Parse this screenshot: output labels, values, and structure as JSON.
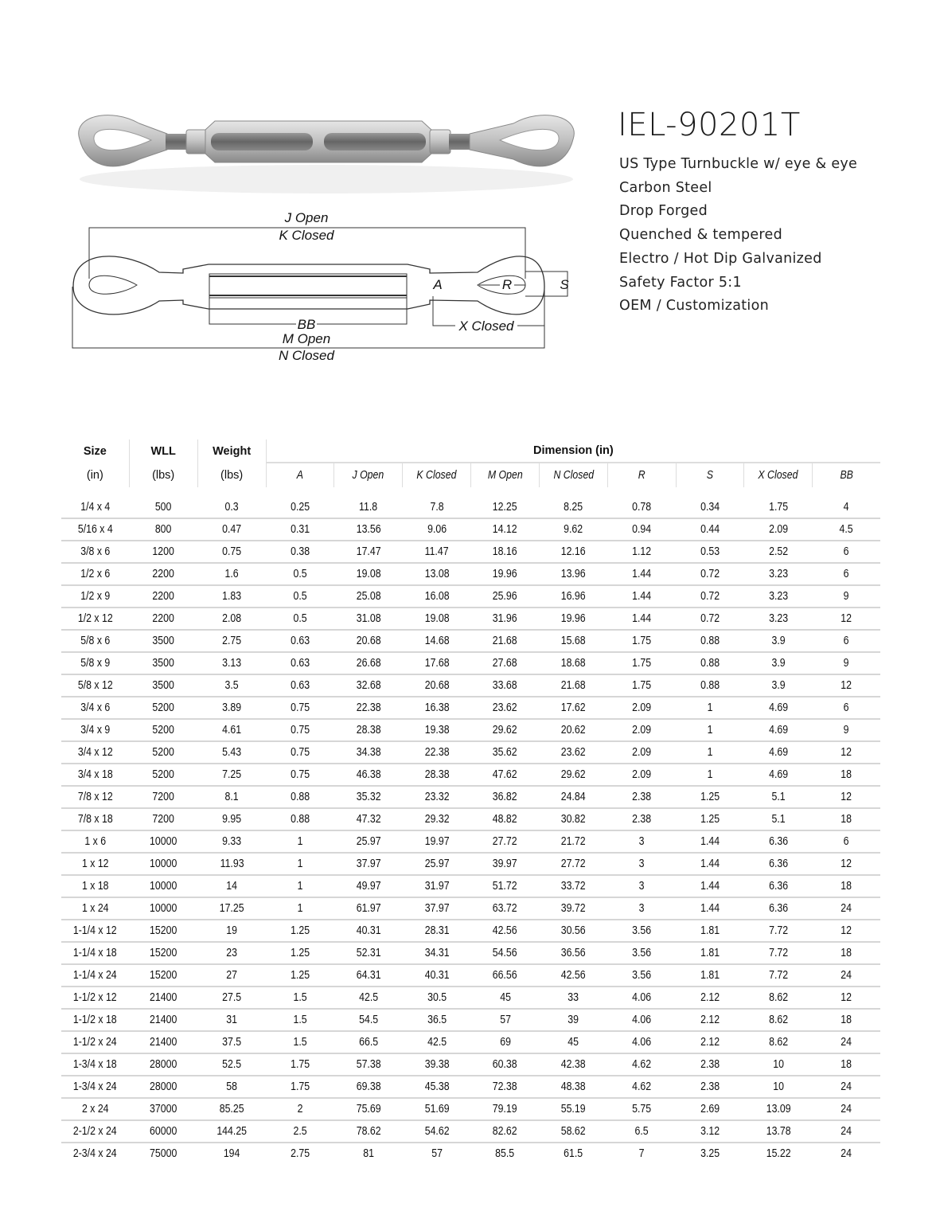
{
  "product": {
    "model": "IEL-90201T",
    "features": [
      "US Type Turnbuckle w/ eye & eye",
      "Carbon Steel",
      "Drop Forged",
      "Quenched & tempered",
      "Electro / Hot Dip Galvanized",
      "Safety Factor 5:1",
      "OEM / Customization"
    ]
  },
  "diagram": {
    "labels": {
      "j_open": "J Open",
      "k_closed": "K Closed",
      "bb": "BB",
      "m_open": "M Open",
      "n_closed": "N Closed",
      "x_closed": "X Closed",
      "a": "A",
      "r": "R",
      "s": "S"
    }
  },
  "table": {
    "group_headers": [
      {
        "label": "Size",
        "unit": "(in)"
      },
      {
        "label": "WLL",
        "unit": "(lbs)"
      },
      {
        "label": "Weight",
        "unit": "(lbs)"
      }
    ],
    "dimension_header": "Dimension (in)",
    "dimension_columns": [
      "A",
      "J Open",
      "K Closed",
      "M Open",
      "N Closed",
      "R",
      "S",
      "X Closed",
      "BB"
    ],
    "rows": [
      [
        "1/4 x 4",
        "500",
        "0.3",
        "0.25",
        "11.8",
        "7.8",
        "12.25",
        "8.25",
        "0.78",
        "0.34",
        "1.75",
        "4"
      ],
      [
        "5/16 x 4",
        "800",
        "0.47",
        "0.31",
        "13.56",
        "9.06",
        "14.12",
        "9.62",
        "0.94",
        "0.44",
        "2.09",
        "4.5"
      ],
      [
        "3/8 x 6",
        "1200",
        "0.75",
        "0.38",
        "17.47",
        "11.47",
        "18.16",
        "12.16",
        "1.12",
        "0.53",
        "2.52",
        "6"
      ],
      [
        "1/2 x 6",
        "2200",
        "1.6",
        "0.5",
        "19.08",
        "13.08",
        "19.96",
        "13.96",
        "1.44",
        "0.72",
        "3.23",
        "6"
      ],
      [
        "1/2 x 9",
        "2200",
        "1.83",
        "0.5",
        "25.08",
        "16.08",
        "25.96",
        "16.96",
        "1.44",
        "0.72",
        "3.23",
        "9"
      ],
      [
        "1/2 x 12",
        "2200",
        "2.08",
        "0.5",
        "31.08",
        "19.08",
        "31.96",
        "19.96",
        "1.44",
        "0.72",
        "3.23",
        "12"
      ],
      [
        "5/8 x 6",
        "3500",
        "2.75",
        "0.63",
        "20.68",
        "14.68",
        "21.68",
        "15.68",
        "1.75",
        "0.88",
        "3.9",
        "6"
      ],
      [
        "5/8 x 9",
        "3500",
        "3.13",
        "0.63",
        "26.68",
        "17.68",
        "27.68",
        "18.68",
        "1.75",
        "0.88",
        "3.9",
        "9"
      ],
      [
        "5/8 x 12",
        "3500",
        "3.5",
        "0.63",
        "32.68",
        "20.68",
        "33.68",
        "21.68",
        "1.75",
        "0.88",
        "3.9",
        "12"
      ],
      [
        "3/4 x 6",
        "5200",
        "3.89",
        "0.75",
        "22.38",
        "16.38",
        "23.62",
        "17.62",
        "2.09",
        "1",
        "4.69",
        "6"
      ],
      [
        "3/4 x 9",
        "5200",
        "4.61",
        "0.75",
        "28.38",
        "19.38",
        "29.62",
        "20.62",
        "2.09",
        "1",
        "4.69",
        "9"
      ],
      [
        "3/4 x 12",
        "5200",
        "5.43",
        "0.75",
        "34.38",
        "22.38",
        "35.62",
        "23.62",
        "2.09",
        "1",
        "4.69",
        "12"
      ],
      [
        "3/4 x 18",
        "5200",
        "7.25",
        "0.75",
        "46.38",
        "28.38",
        "47.62",
        "29.62",
        "2.09",
        "1",
        "4.69",
        "18"
      ],
      [
        "7/8 x 12",
        "7200",
        "8.1",
        "0.88",
        "35.32",
        "23.32",
        "36.82",
        "24.84",
        "2.38",
        "1.25",
        "5.1",
        "12"
      ],
      [
        "7/8 x 18",
        "7200",
        "9.95",
        "0.88",
        "47.32",
        "29.32",
        "48.82",
        "30.82",
        "2.38",
        "1.25",
        "5.1",
        "18"
      ],
      [
        "1 x 6",
        "10000",
        "9.33",
        "1",
        "25.97",
        "19.97",
        "27.72",
        "21.72",
        "3",
        "1.44",
        "6.36",
        "6"
      ],
      [
        "1 x 12",
        "10000",
        "11.93",
        "1",
        "37.97",
        "25.97",
        "39.97",
        "27.72",
        "3",
        "1.44",
        "6.36",
        "12"
      ],
      [
        "1 x 18",
        "10000",
        "14",
        "1",
        "49.97",
        "31.97",
        "51.72",
        "33.72",
        "3",
        "1.44",
        "6.36",
        "18"
      ],
      [
        "1 x 24",
        "10000",
        "17.25",
        "1",
        "61.97",
        "37.97",
        "63.72",
        "39.72",
        "3",
        "1.44",
        "6.36",
        "24"
      ],
      [
        "1-1/4 x 12",
        "15200",
        "19",
        "1.25",
        "40.31",
        "28.31",
        "42.56",
        "30.56",
        "3.56",
        "1.81",
        "7.72",
        "12"
      ],
      [
        "1-1/4 x 18",
        "15200",
        "23",
        "1.25",
        "52.31",
        "34.31",
        "54.56",
        "36.56",
        "3.56",
        "1.81",
        "7.72",
        "18"
      ],
      [
        "1-1/4 x 24",
        "15200",
        "27",
        "1.25",
        "64.31",
        "40.31",
        "66.56",
        "42.56",
        "3.56",
        "1.81",
        "7.72",
        "24"
      ],
      [
        "1-1/2 x 12",
        "21400",
        "27.5",
        "1.5",
        "42.5",
        "30.5",
        "45",
        "33",
        "4.06",
        "2.12",
        "8.62",
        "12"
      ],
      [
        "1-1/2 x 18",
        "21400",
        "31",
        "1.5",
        "54.5",
        "36.5",
        "57",
        "39",
        "4.06",
        "2.12",
        "8.62",
        "18"
      ],
      [
        "1-1/2 x 24",
        "21400",
        "37.5",
        "1.5",
        "66.5",
        "42.5",
        "69",
        "45",
        "4.06",
        "2.12",
        "8.62",
        "24"
      ],
      [
        "1-3/4 x 18",
        "28000",
        "52.5",
        "1.75",
        "57.38",
        "39.38",
        "60.38",
        "42.38",
        "4.62",
        "2.38",
        "10",
        "18"
      ],
      [
        "1-3/4 x 24",
        "28000",
        "58",
        "1.75",
        "69.38",
        "45.38",
        "72.38",
        "48.38",
        "4.62",
        "2.38",
        "10",
        "24"
      ],
      [
        "2 x 24",
        "37000",
        "85.25",
        "2",
        "75.69",
        "51.69",
        "79.19",
        "55.19",
        "5.75",
        "2.69",
        "13.09",
        "24"
      ],
      [
        "2-1/2 x 24",
        "60000",
        "144.25",
        "2.5",
        "78.62",
        "54.62",
        "82.62",
        "58.62",
        "6.5",
        "3.12",
        "13.78",
        "24"
      ],
      [
        "2-3/4 x 24",
        "75000",
        "194",
        "2.75",
        "81",
        "57",
        "85.5",
        "61.5",
        "7",
        "3.25",
        "15.22",
        "24"
      ]
    ]
  }
}
